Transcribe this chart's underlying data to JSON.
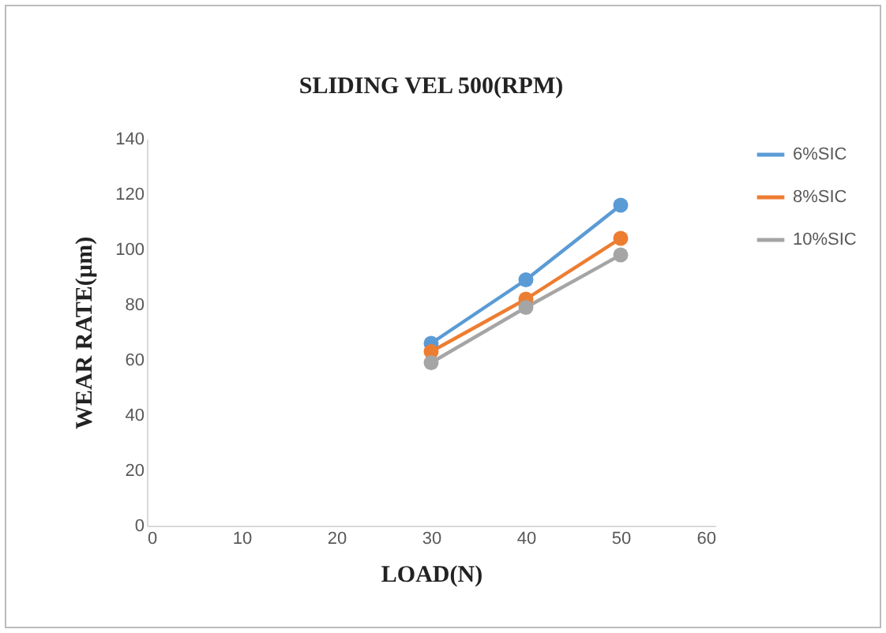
{
  "chart_data": {
    "type": "line",
    "title": "SLIDING VEL 500(RPM)",
    "xlabel": "LOAD(N)",
    "ylabel": "WEAR RATE(µm)",
    "x": [
      30,
      40,
      50
    ],
    "series": [
      {
        "name": "6%SIC",
        "color": "#5b9bd5",
        "values": [
          66,
          89,
          116
        ]
      },
      {
        "name": "8%SIC",
        "color": "#ed7d31",
        "values": [
          63,
          82,
          104
        ]
      },
      {
        "name": "10%SIC",
        "color": "#a5a5a5",
        "values": [
          59,
          79,
          98
        ]
      }
    ],
    "xlim": [
      0,
      60
    ],
    "xticks": [
      0,
      10,
      20,
      30,
      40,
      50,
      60
    ],
    "ylim": [
      0,
      140
    ],
    "yticks": [
      0,
      20,
      40,
      60,
      80,
      100,
      120,
      140
    ],
    "grid": false,
    "legend": "right",
    "marker": "circle",
    "line_style": "solid"
  }
}
